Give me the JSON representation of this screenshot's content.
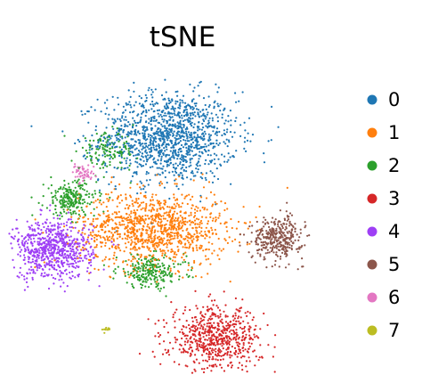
{
  "chart_data": {
    "type": "scatter",
    "title": "tSNE",
    "xlabel": "",
    "ylabel": "",
    "axes_visible": false,
    "grid": false,
    "legend_placement": "right",
    "series": [
      {
        "name": "0",
        "color": "#1f77b4",
        "clusters": [
          {
            "x": 0.0,
            "y": 3.2,
            "sx": 2.4,
            "sy": 1.7,
            "n": 1250
          }
        ]
      },
      {
        "name": "1",
        "color": "#ff7f0e",
        "clusters": [
          {
            "x": -0.6,
            "y": -0.6,
            "sx": 2.6,
            "sy": 1.4,
            "n": 1100
          }
        ]
      },
      {
        "name": "2",
        "color": "#2ca02c",
        "clusters": [
          {
            "x": -3.8,
            "y": 0.6,
            "sx": 0.9,
            "sy": 0.7,
            "n": 230
          },
          {
            "x": -0.7,
            "y": -2.4,
            "sx": 1.2,
            "sy": 0.6,
            "n": 230
          },
          {
            "x": -2.4,
            "y": 2.6,
            "sx": 1.0,
            "sy": 0.7,
            "n": 130
          }
        ]
      },
      {
        "name": "3",
        "color": "#d62728",
        "clusters": [
          {
            "x": 1.8,
            "y": -5.2,
            "sx": 1.6,
            "sy": 1.2,
            "n": 650
          }
        ]
      },
      {
        "name": "4",
        "color": "#9e3ff5",
        "clusters": [
          {
            "x": -4.5,
            "y": -1.5,
            "sx": 1.4,
            "sy": 1.1,
            "n": 700
          }
        ]
      },
      {
        "name": "5",
        "color": "#8c564b",
        "clusters": [
          {
            "x": 4.2,
            "y": -1.0,
            "sx": 0.9,
            "sy": 0.8,
            "n": 350
          }
        ]
      },
      {
        "name": "6",
        "color": "#e377c2",
        "clusters": [
          {
            "x": -3.3,
            "y": 1.7,
            "sx": 0.4,
            "sy": 0.35,
            "n": 55
          }
        ]
      },
      {
        "name": "7",
        "color": "#bcbd22",
        "clusters": [
          {
            "x": -2.5,
            "y": -4.8,
            "sx": 0.15,
            "sy": 0.1,
            "n": 12
          }
        ]
      }
    ]
  }
}
